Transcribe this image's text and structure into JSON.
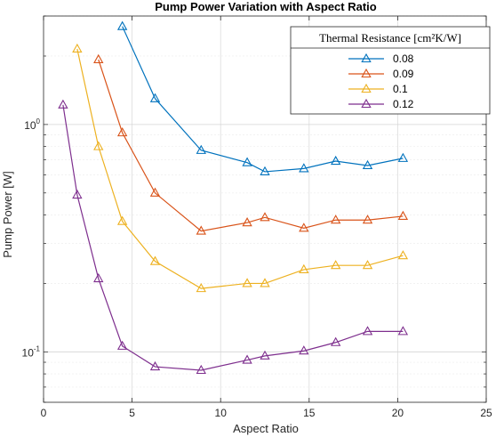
{
  "chart_data": {
    "type": "line",
    "title": "Pump Power Variation with Aspect Ratio",
    "xlabel": "Aspect Ratio",
    "ylabel": "Pump Power [W]",
    "xlim": [
      0,
      25
    ],
    "ylim": [
      0.06,
      3.0
    ],
    "yscale": "log",
    "grid": true,
    "legend_position": "top-right",
    "legend_title": "Thermal Resistance [cm²K/W]",
    "x_ticks": [
      "0",
      "5",
      "10",
      "15",
      "20",
      "25"
    ],
    "y_ticks": [
      {
        "base": "10",
        "exp": "-1",
        "value": 0.1
      },
      {
        "base": "10",
        "exp": "0",
        "value": 1
      }
    ],
    "series": [
      {
        "name": "0.08",
        "color": "#0072BD",
        "marker": "triangle",
        "x": [
          4.45,
          6.3,
          8.9,
          11.5,
          12.5,
          14.7,
          16.5,
          18.3,
          20.3
        ],
        "y": [
          2.7,
          1.3,
          0.77,
          0.68,
          0.62,
          0.64,
          0.69,
          0.66,
          0.71
        ]
      },
      {
        "name": "0.09",
        "color": "#D95319",
        "marker": "triangle",
        "x": [
          3.1,
          4.45,
          6.3,
          8.9,
          11.5,
          12.5,
          14.7,
          16.5,
          18.3,
          20.3
        ],
        "y": [
          1.93,
          0.92,
          0.5,
          0.34,
          0.37,
          0.39,
          0.35,
          0.38,
          0.38,
          0.395
        ]
      },
      {
        "name": "0.1",
        "color": "#EDB120",
        "marker": "triangle",
        "x": [
          1.9,
          3.1,
          4.45,
          6.3,
          8.9,
          11.5,
          12.5,
          14.7,
          16.5,
          18.3,
          20.3
        ],
        "y": [
          2.15,
          0.8,
          0.375,
          0.25,
          0.19,
          0.2,
          0.2,
          0.23,
          0.24,
          0.24,
          0.265
        ]
      },
      {
        "name": "0.12",
        "color": "#7E2F8E",
        "marker": "triangle",
        "x": [
          1.1,
          1.9,
          3.1,
          4.45,
          6.3,
          8.9,
          11.5,
          12.5,
          14.7,
          16.5,
          18.3,
          20.3
        ],
        "y": [
          1.22,
          0.49,
          0.21,
          0.106,
          0.086,
          0.083,
          0.092,
          0.096,
          0.101,
          0.11,
          0.123,
          0.123
        ]
      }
    ]
  }
}
